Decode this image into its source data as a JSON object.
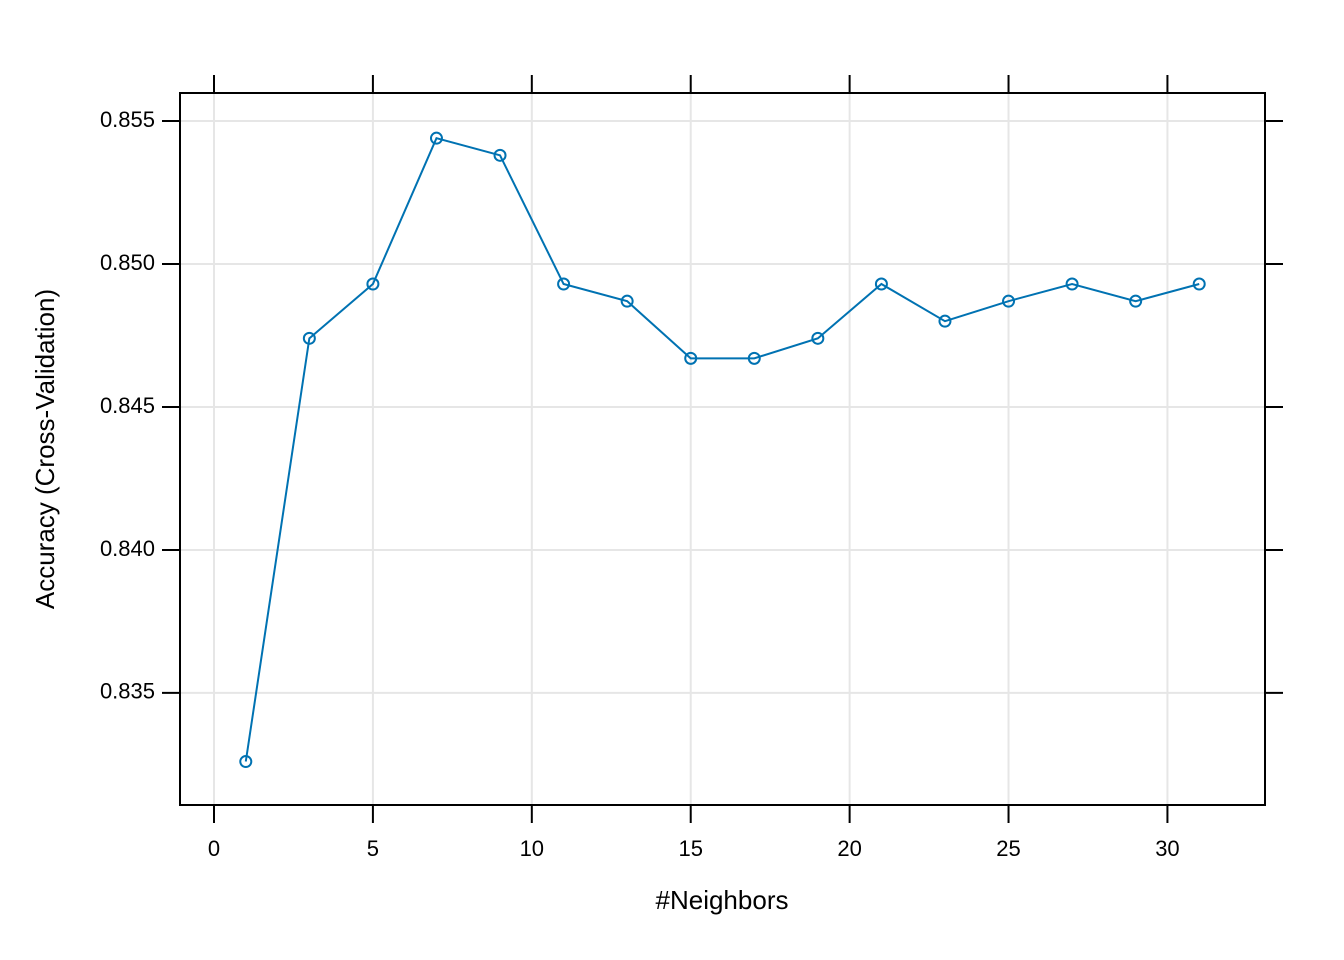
{
  "chart_data": {
    "type": "line",
    "x_label": "#Neighbors",
    "y_label": "Accuracy (Cross-Validation)",
    "x": [
      1,
      3,
      5,
      7,
      9,
      11,
      13,
      15,
      17,
      19,
      21,
      23,
      25,
      27,
      29,
      31
    ],
    "series": [
      {
        "color": "#0072b2",
        "values": [
          0.8326,
          0.8474,
          0.8493,
          0.8544,
          0.8538,
          0.8493,
          0.8487,
          0.8467,
          0.8467,
          0.8474,
          0.8493,
          0.848,
          0.8487,
          0.8493,
          0.8487,
          0.8493
        ]
      }
    ],
    "xlim": [
      -1.07,
      33.07
    ],
    "ylim": [
      0.83108,
      0.85598
    ],
    "xticks": [
      0,
      5,
      10,
      15,
      20,
      25,
      30
    ],
    "yticks": [
      {
        "value": 0.835,
        "label": "0.835"
      },
      {
        "value": 0.84,
        "label": "0.840"
      },
      {
        "value": 0.845,
        "label": "0.845"
      },
      {
        "value": 0.85,
        "label": "0.850"
      },
      {
        "value": 0.855,
        "label": "0.855"
      }
    ],
    "grid": true
  }
}
